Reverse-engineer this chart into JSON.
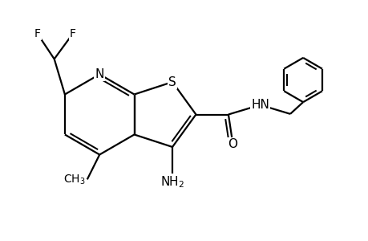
{
  "bg_color": "#ffffff",
  "bond_color": "#000000",
  "bond_lw": 1.6,
  "font_size": 11,
  "figsize": [
    4.6,
    3.0
  ],
  "dpi": 100,
  "xlim": [
    0,
    9.2
  ],
  "ylim": [
    0,
    6.0
  ]
}
